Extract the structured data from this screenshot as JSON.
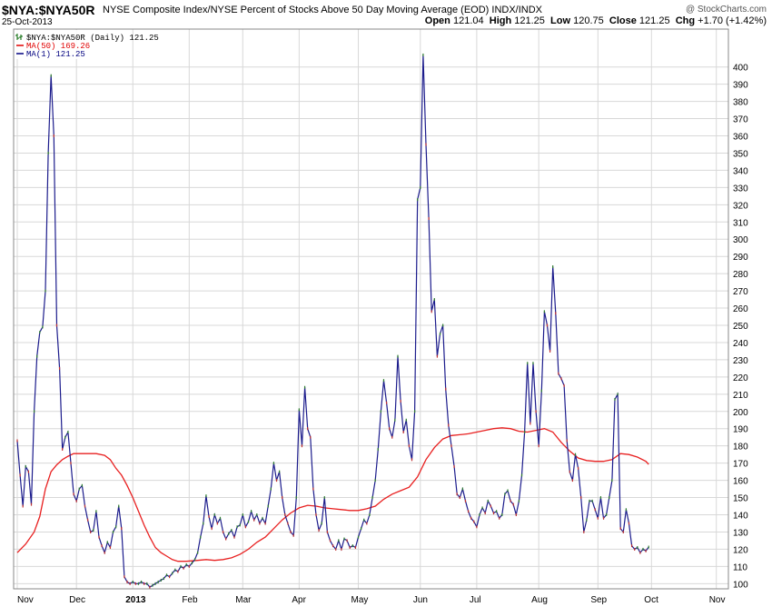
{
  "header": {
    "symbol": "$NYA:$NYA50R",
    "description": "NYSE Composite Index/NYSE Percent of Stocks Above 50 Day Moving Average (EOD) INDX/INDX",
    "date": "25-Oct-2013",
    "brand": "@ StockCharts.com",
    "open_label": "Open",
    "open": "121.04",
    "high_label": "High",
    "high": "121.25",
    "low_label": "Low",
    "low": "120.75",
    "close_label": "Close",
    "close": "121.25",
    "chg_label": "Chg",
    "chg": "+1.70 (+1.42%)"
  },
  "legend": [
    {
      "label": "$NYA:$NYA50R (Daily) 121.25",
      "color": "#006400",
      "icon": "ohlc-bar-icon"
    },
    {
      "label": "MA(50) 169.26",
      "color": "#e00000",
      "icon": "line-icon"
    },
    {
      "label": "MA(1) 121.25",
      "color": "#000080",
      "icon": "line-icon"
    }
  ],
  "colors": {
    "price": "#1c1c8c",
    "ma50": "#e82020",
    "grid": "#d8d8d8"
  },
  "chart_data": {
    "type": "line",
    "ylim": [
      97,
      422
    ],
    "y_ticks": [
      100,
      110,
      120,
      130,
      140,
      150,
      160,
      170,
      180,
      190,
      200,
      210,
      220,
      230,
      240,
      250,
      260,
      270,
      280,
      290,
      300,
      310,
      320,
      330,
      340,
      350,
      360,
      370,
      380,
      390,
      400
    ],
    "x_labels": [
      {
        "label": "Nov",
        "x": 0
      },
      {
        "label": "Dec",
        "x": 21
      },
      {
        "label": "2013",
        "x": 41
      },
      {
        "label": "Feb",
        "x": 61
      },
      {
        "label": "Mar",
        "x": 80
      },
      {
        "label": "Apr",
        "x": 100
      },
      {
        "label": "May",
        "x": 121
      },
      {
        "label": "Jun",
        "x": 143
      },
      {
        "label": "Jul",
        "x": 163
      },
      {
        "label": "Aug",
        "x": 185
      },
      {
        "label": "Sep",
        "x": 206
      },
      {
        "label": "Oct",
        "x": 225
      },
      {
        "label": "Nov",
        "x": 248
      }
    ],
    "series": [
      {
        "name": "MA(1) 121.25",
        "points": [
          [
            0,
            183
          ],
          [
            1,
            163
          ],
          [
            2,
            145
          ],
          [
            3,
            168
          ],
          [
            4,
            165
          ],
          [
            5,
            146
          ],
          [
            6,
            200
          ],
          [
            7,
            232
          ],
          [
            8,
            246
          ],
          [
            9,
            249
          ],
          [
            10,
            270
          ],
          [
            11,
            350
          ],
          [
            12,
            395
          ],
          [
            13,
            360
          ],
          [
            14,
            250
          ],
          [
            15,
            225
          ],
          [
            16,
            178
          ],
          [
            17,
            185
          ],
          [
            18,
            188
          ],
          [
            19,
            170
          ],
          [
            20,
            152
          ],
          [
            21,
            148
          ],
          [
            22,
            155
          ],
          [
            23,
            157
          ],
          [
            24,
            145
          ],
          [
            25,
            137
          ],
          [
            26,
            130
          ],
          [
            27,
            131
          ],
          [
            28,
            142
          ],
          [
            29,
            127
          ],
          [
            30,
            122
          ],
          [
            31,
            118
          ],
          [
            32,
            124
          ],
          [
            33,
            121
          ],
          [
            34,
            130
          ],
          [
            35,
            133
          ],
          [
            36,
            145
          ],
          [
            37,
            132
          ],
          [
            38,
            104
          ],
          [
            39,
            101
          ],
          [
            40,
            100
          ],
          [
            41,
            101
          ],
          [
            42,
            100
          ],
          [
            43,
            100
          ],
          [
            44,
            101
          ],
          [
            45,
            100
          ],
          [
            46,
            100
          ],
          [
            47,
            98
          ],
          [
            48,
            99
          ],
          [
            49,
            100
          ],
          [
            50,
            101
          ],
          [
            51,
            102
          ],
          [
            52,
            103
          ],
          [
            53,
            105
          ],
          [
            54,
            104
          ],
          [
            55,
            106
          ],
          [
            56,
            108
          ],
          [
            57,
            107
          ],
          [
            58,
            110
          ],
          [
            59,
            109
          ],
          [
            60,
            111
          ],
          [
            61,
            110
          ],
          [
            62,
            112
          ],
          [
            63,
            114
          ],
          [
            64,
            118
          ],
          [
            65,
            127
          ],
          [
            66,
            135
          ],
          [
            67,
            151
          ],
          [
            68,
            139
          ],
          [
            69,
            132
          ],
          [
            70,
            140
          ],
          [
            71,
            135
          ],
          [
            72,
            138
          ],
          [
            73,
            130
          ],
          [
            74,
            126
          ],
          [
            75,
            129
          ],
          [
            76,
            131
          ],
          [
            77,
            127
          ],
          [
            78,
            133
          ],
          [
            79,
            134
          ],
          [
            80,
            140
          ],
          [
            81,
            133
          ],
          [
            82,
            136
          ],
          [
            83,
            142
          ],
          [
            84,
            137
          ],
          [
            85,
            140
          ],
          [
            86,
            135
          ],
          [
            87,
            138
          ],
          [
            88,
            135
          ],
          [
            89,
            145
          ],
          [
            90,
            155
          ],
          [
            91,
            170
          ],
          [
            92,
            160
          ],
          [
            93,
            165
          ],
          [
            94,
            150
          ],
          [
            95,
            140
          ],
          [
            96,
            135
          ],
          [
            97,
            130
          ],
          [
            98,
            128
          ],
          [
            99,
            150
          ],
          [
            100,
            201
          ],
          [
            101,
            180
          ],
          [
            102,
            214
          ],
          [
            103,
            190
          ],
          [
            104,
            185
          ],
          [
            105,
            155
          ],
          [
            106,
            140
          ],
          [
            107,
            131
          ],
          [
            108,
            135
          ],
          [
            109,
            150
          ],
          [
            110,
            130
          ],
          [
            111,
            125
          ],
          [
            112,
            122
          ],
          [
            113,
            120
          ],
          [
            114,
            125
          ],
          [
            115,
            120
          ],
          [
            116,
            126
          ],
          [
            117,
            125
          ],
          [
            118,
            121
          ],
          [
            119,
            122
          ],
          [
            120,
            121
          ],
          [
            121,
            127
          ],
          [
            122,
            132
          ],
          [
            123,
            137
          ],
          [
            124,
            135
          ],
          [
            125,
            140
          ],
          [
            126,
            150
          ],
          [
            127,
            160
          ],
          [
            128,
            178
          ],
          [
            129,
            200
          ],
          [
            130,
            218
          ],
          [
            131,
            205
          ],
          [
            132,
            190
          ],
          [
            133,
            185
          ],
          [
            134,
            195
          ],
          [
            135,
            232
          ],
          [
            136,
            206
          ],
          [
            137,
            188
          ],
          [
            138,
            195
          ],
          [
            139,
            180
          ],
          [
            140,
            172
          ],
          [
            141,
            200
          ],
          [
            142,
            323
          ],
          [
            143,
            330
          ],
          [
            144,
            407
          ],
          [
            145,
            355
          ],
          [
            146,
            312
          ],
          [
            147,
            258
          ],
          [
            148,
            265
          ],
          [
            149,
            232
          ],
          [
            150,
            245
          ],
          [
            151,
            250
          ],
          [
            152,
            213
          ],
          [
            153,
            192
          ],
          [
            154,
            180
          ],
          [
            155,
            168
          ],
          [
            156,
            152
          ],
          [
            157,
            150
          ],
          [
            158,
            155
          ],
          [
            159,
            148
          ],
          [
            160,
            142
          ],
          [
            161,
            138
          ],
          [
            162,
            136
          ],
          [
            163,
            133
          ],
          [
            164,
            140
          ],
          [
            165,
            144
          ],
          [
            166,
            141
          ],
          [
            167,
            148
          ],
          [
            168,
            145
          ],
          [
            169,
            141
          ],
          [
            170,
            142
          ],
          [
            171,
            138
          ],
          [
            172,
            140
          ],
          [
            173,
            152
          ],
          [
            174,
            154
          ],
          [
            175,
            148
          ],
          [
            176,
            146
          ],
          [
            177,
            140
          ],
          [
            178,
            148
          ],
          [
            179,
            163
          ],
          [
            180,
            188
          ],
          [
            181,
            228
          ],
          [
            182,
            193
          ],
          [
            183,
            228
          ],
          [
            184,
            200
          ],
          [
            185,
            180
          ],
          [
            186,
            212
          ],
          [
            187,
            258
          ],
          [
            188,
            250
          ],
          [
            189,
            235
          ],
          [
            190,
            284
          ],
          [
            191,
            257
          ],
          [
            192,
            222
          ],
          [
            193,
            219
          ],
          [
            194,
            215
          ],
          [
            195,
            183
          ],
          [
            196,
            165
          ],
          [
            197,
            160
          ],
          [
            198,
            175
          ],
          [
            199,
            167
          ],
          [
            200,
            150
          ],
          [
            201,
            130
          ],
          [
            202,
            137
          ],
          [
            203,
            148
          ],
          [
            204,
            148
          ],
          [
            205,
            143
          ],
          [
            206,
            138
          ],
          [
            207,
            150
          ],
          [
            208,
            138
          ],
          [
            209,
            140
          ],
          [
            210,
            150
          ],
          [
            211,
            160
          ],
          [
            212,
            207
          ],
          [
            213,
            210
          ],
          [
            214,
            132
          ],
          [
            215,
            130
          ],
          [
            216,
            143
          ],
          [
            217,
            135
          ],
          [
            218,
            122
          ],
          [
            219,
            120
          ],
          [
            220,
            121
          ],
          [
            221,
            118
          ],
          [
            222,
            120
          ],
          [
            223,
            119
          ],
          [
            224,
            121.25
          ]
        ]
      },
      {
        "name": "MA(50) 169.26",
        "points": [
          [
            0,
            118
          ],
          [
            3,
            123
          ],
          [
            6,
            130
          ],
          [
            8,
            139
          ],
          [
            10,
            155
          ],
          [
            12,
            165
          ],
          [
            14,
            169
          ],
          [
            16,
            172
          ],
          [
            18,
            174
          ],
          [
            20,
            175.5
          ],
          [
            24,
            175.5
          ],
          [
            28,
            175.5
          ],
          [
            31,
            174.5
          ],
          [
            33,
            172
          ],
          [
            35,
            167
          ],
          [
            37,
            163
          ],
          [
            39,
            157
          ],
          [
            41,
            150
          ],
          [
            43,
            142
          ],
          [
            45,
            134
          ],
          [
            47,
            127
          ],
          [
            49,
            121
          ],
          [
            51,
            118
          ],
          [
            53,
            116
          ],
          [
            55,
            114
          ],
          [
            57,
            113
          ],
          [
            60,
            113
          ],
          [
            64,
            113.5
          ],
          [
            67,
            114
          ],
          [
            70,
            113.5
          ],
          [
            73,
            114
          ],
          [
            76,
            115
          ],
          [
            79,
            117
          ],
          [
            82,
            120
          ],
          [
            85,
            124
          ],
          [
            88,
            127
          ],
          [
            91,
            132
          ],
          [
            94,
            137
          ],
          [
            97,
            141
          ],
          [
            100,
            144
          ],
          [
            103,
            145.5
          ],
          [
            106,
            145
          ],
          [
            109,
            144
          ],
          [
            112,
            143.5
          ],
          [
            115,
            143
          ],
          [
            118,
            142.5
          ],
          [
            121,
            142.5
          ],
          [
            124,
            143.5
          ],
          [
            127,
            145
          ],
          [
            130,
            149
          ],
          [
            133,
            152
          ],
          [
            136,
            154
          ],
          [
            139,
            156
          ],
          [
            142,
            162
          ],
          [
            145,
            172
          ],
          [
            148,
            179
          ],
          [
            151,
            184
          ],
          [
            154,
            186
          ],
          [
            157,
            186.5
          ],
          [
            160,
            187
          ],
          [
            163,
            188
          ],
          [
            166,
            189
          ],
          [
            169,
            190
          ],
          [
            172,
            190.5
          ],
          [
            175,
            190
          ],
          [
            178,
            188.5
          ],
          [
            181,
            188
          ],
          [
            184,
            189
          ],
          [
            187,
            190
          ],
          [
            190,
            188
          ],
          [
            193,
            182
          ],
          [
            196,
            177
          ],
          [
            199,
            173
          ],
          [
            202,
            171.5
          ],
          [
            205,
            171
          ],
          [
            208,
            171
          ],
          [
            211,
            172
          ],
          [
            214,
            175.5
          ],
          [
            217,
            175
          ],
          [
            220,
            173.5
          ],
          [
            223,
            171
          ],
          [
            224,
            169.26
          ]
        ]
      }
    ]
  }
}
